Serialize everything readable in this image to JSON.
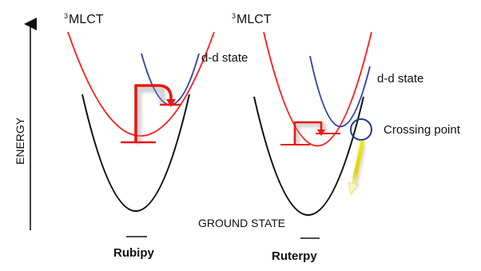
{
  "labels": {
    "energy_axis": "ENERGY",
    "mlct_sup": "3",
    "mlct_left": "MLCT",
    "mlct_right": "MLCT",
    "dd_left": "d-d state",
    "dd_right": "d-d state",
    "crossing_point": "Crossing point",
    "ground_state": "GROUND STATE",
    "complex_left": "Rubipy",
    "complex_right": "Ruterpy"
  },
  "colors": {
    "ground_curve": "#111111",
    "mlct_curve": "#ff1a1a",
    "dd_curve": "#2b3fb5",
    "transition_arrow": "#e8190f",
    "crossing_circle": "#1f3a93",
    "decay_arrow": "#f2e600"
  },
  "icons": {
    "energy_axis_arrow": "up-arrow-icon",
    "crossing_marker": "circle-icon",
    "decay_marker": "down-arrow-icon"
  }
}
